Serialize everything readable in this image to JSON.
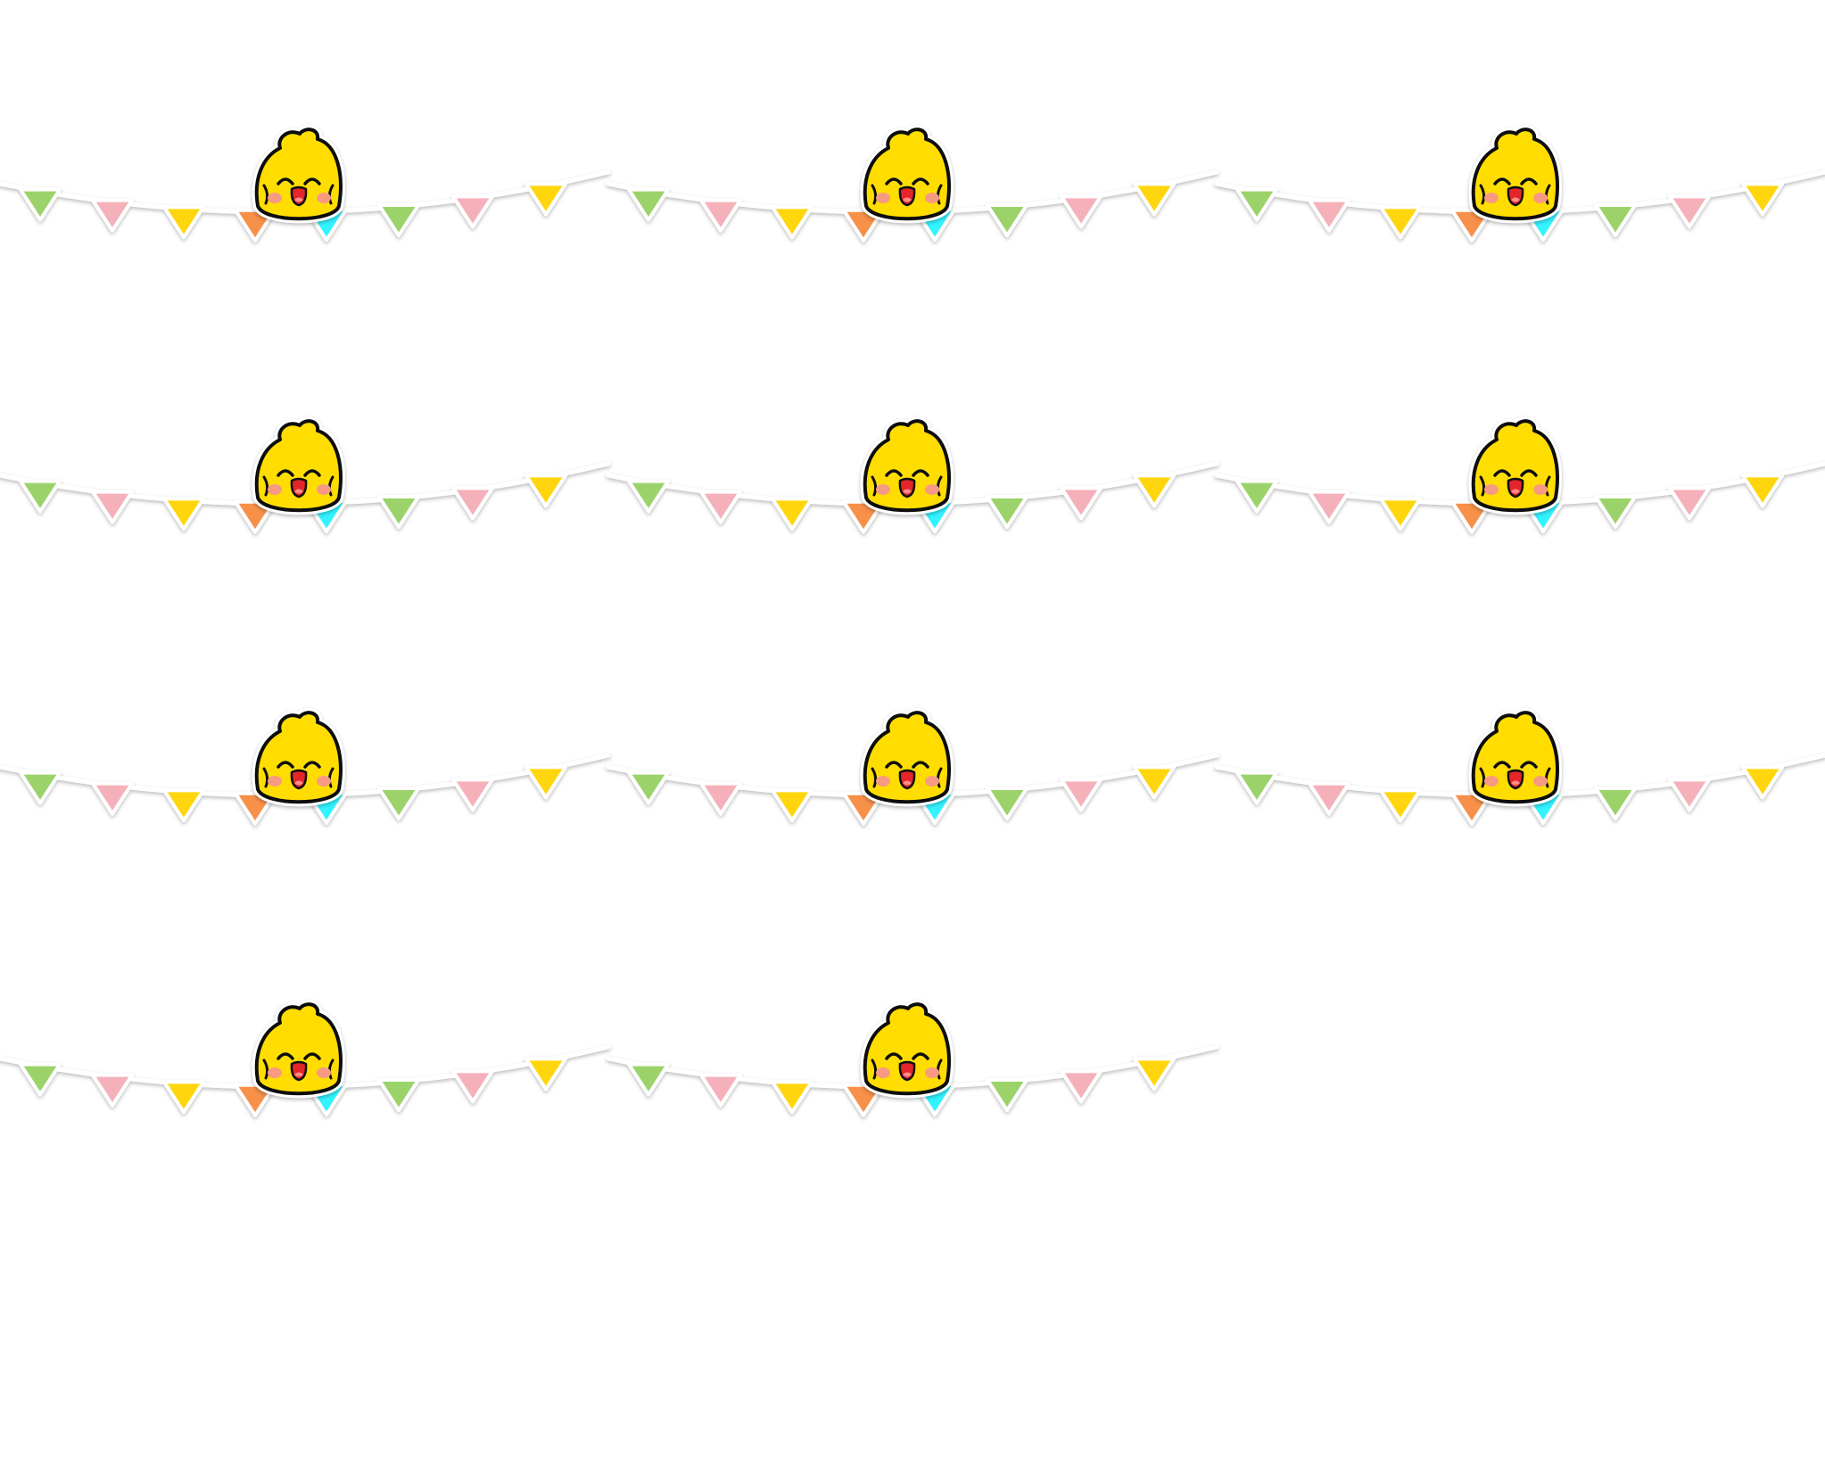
{
  "sheet": {
    "background": "#ffffff",
    "sticker_count": 11
  },
  "sticker_design": {
    "icon": "chick-on-bunting-icon",
    "string_color": "#ffffff",
    "flag_colors": [
      "#9bd36a",
      "#f5b1ba",
      "#ffd60a",
      "#f7904a",
      "#33f3ff",
      "#9bd36a",
      "#f5b1ba",
      "#ffd60a"
    ],
    "chick": {
      "body_color": "#ffdd00",
      "outline_color": "#111111",
      "cheek_color": "#f79a82",
      "mouth_color": "#e4262c",
      "tongue_color": "#ff8b8b"
    }
  },
  "stickers": [
    {
      "id": 1
    },
    {
      "id": 2
    },
    {
      "id": 3
    },
    {
      "id": 4
    },
    {
      "id": 5
    },
    {
      "id": 6
    },
    {
      "id": 7
    },
    {
      "id": 8
    },
    {
      "id": 9
    },
    {
      "id": 10
    },
    {
      "id": 11
    }
  ]
}
